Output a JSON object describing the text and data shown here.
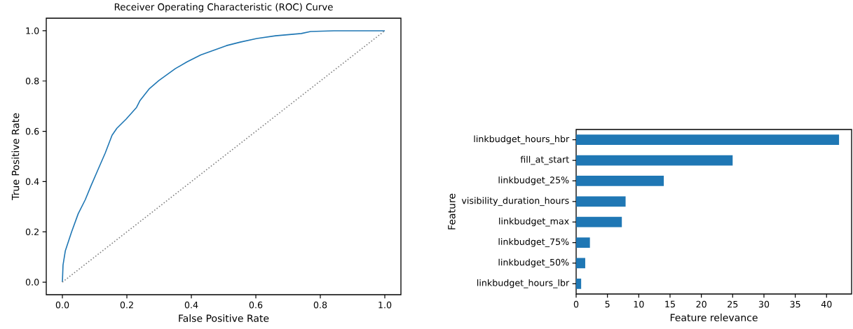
{
  "chart_data": [
    {
      "type": "line",
      "title": "Receiver Operating Characteristic (ROC) Curve",
      "xlabel": "False Positive Rate",
      "ylabel": "True Positive Rate",
      "xlim": [
        -0.05,
        1.05
      ],
      "ylim": [
        -0.05,
        1.05
      ],
      "xticks": [
        {
          "value": 0,
          "label": "0.0"
        },
        {
          "value": 0.2,
          "label": "0.2"
        },
        {
          "value": 0.4,
          "label": "0.4"
        },
        {
          "value": 0.6,
          "label": "0.6"
        },
        {
          "value": 0.8,
          "label": "0.8"
        },
        {
          "value": 1,
          "label": "1.0"
        }
      ],
      "yticks": [
        {
          "value": 0,
          "label": "0.0"
        },
        {
          "value": 0.2,
          "label": "0.2"
        },
        {
          "value": 0.4,
          "label": "0.4"
        },
        {
          "value": 0.6,
          "label": "0.6"
        },
        {
          "value": 0.8,
          "label": "0.8"
        },
        {
          "value": 1,
          "label": "1.0"
        }
      ],
      "series": [
        {
          "color": "#1f77b4",
          "line_style": "solid",
          "x": [
            0,
            0.002,
            0.009,
            0.028,
            0.049,
            0.071,
            0.089,
            0.111,
            0.133,
            0.154,
            0.169,
            0.198,
            0.23,
            0.241,
            0.27,
            0.299,
            0.35,
            0.386,
            0.429,
            0.509,
            0.552,
            0.603,
            0.661,
            0.741,
            0.77,
            0.842,
            1.0
          ],
          "values": [
            0,
            0.068,
            0.124,
            0.198,
            0.272,
            0.328,
            0.384,
            0.449,
            0.514,
            0.584,
            0.612,
            0.649,
            0.695,
            0.723,
            0.77,
            0.802,
            0.849,
            0.876,
            0.904,
            0.941,
            0.955,
            0.969,
            0.98,
            0.989,
            0.997,
            1.0,
            1.0
          ]
        },
        {
          "color": "#808080",
          "line_style": "dotted",
          "x": [
            0,
            1
          ],
          "values": [
            0,
            1
          ]
        }
      ]
    },
    {
      "type": "bar",
      "orientation": "horizontal",
      "xlabel": "Feature relevance",
      "ylabel": "Feature",
      "color": "#1f77b4",
      "categories": [
        "linkbudget_hours_hbr",
        "fill_at_start",
        "linkbudget_25%",
        "visibility_duration_hours",
        "linkbudget_max",
        "linkbudget_75%",
        "linkbudget_50%",
        "linkbudget_hours_lbr"
      ],
      "values": [
        42.0,
        25.0,
        14.0,
        7.9,
        7.3,
        2.2,
        1.45,
        0.8
      ],
      "xlim": [
        0,
        44
      ],
      "xticks": [
        0,
        5,
        10,
        15,
        20,
        25,
        30,
        35,
        40
      ]
    }
  ]
}
